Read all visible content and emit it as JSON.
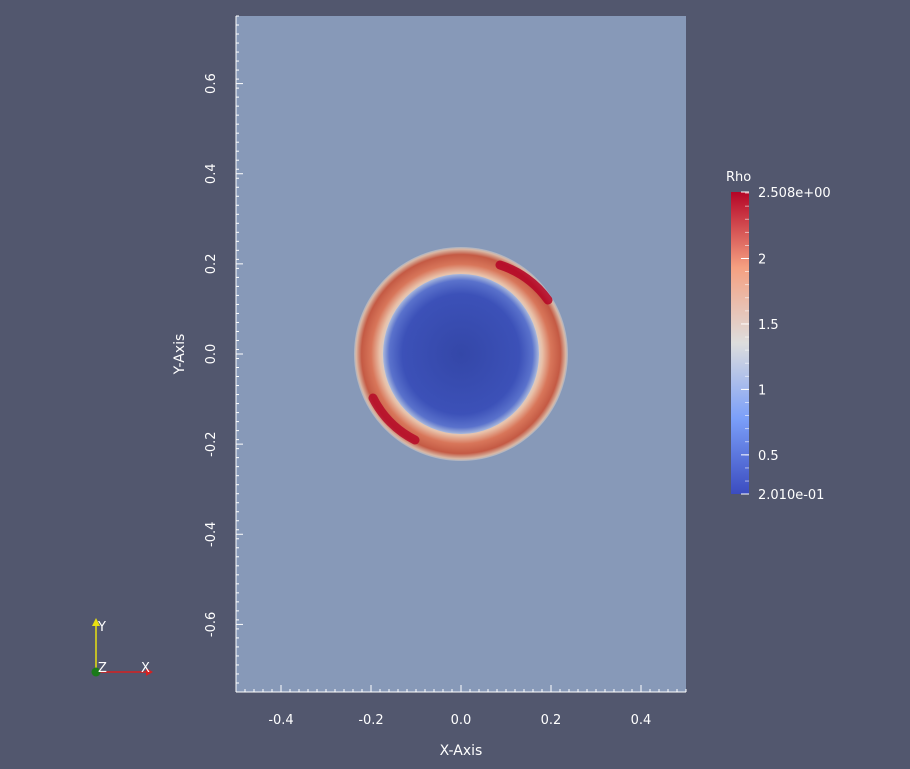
{
  "axes": {
    "x_label": "X-Axis",
    "y_label": "Y-Axis",
    "x_range": [
      -0.5,
      0.5
    ],
    "y_range": [
      -0.75,
      0.75
    ],
    "x_ticks": [
      "-0.4",
      "-0.2",
      "0.0",
      "0.2",
      "0.4"
    ],
    "x_tick_values": [
      -0.4,
      -0.2,
      0.0,
      0.2,
      0.4
    ],
    "y_ticks": [
      "0.6",
      "0.4",
      "0.2",
      "0.0",
      "-0.2",
      "-0.4",
      "-0.6"
    ],
    "y_tick_values": [
      0.6,
      0.4,
      0.2,
      0.0,
      -0.2,
      -0.4,
      -0.6
    ]
  },
  "colorbar": {
    "title": "Rho",
    "max_label": "2.508e+00",
    "min_label": "2.010e-01",
    "max_value": 2.508,
    "min_value": 0.201,
    "tick_labels": [
      "2",
      "1.5",
      "1",
      "0.5"
    ],
    "tick_values": [
      2.0,
      1.5,
      1.0,
      0.5
    ]
  },
  "orientation_axes": {
    "x_label": "X",
    "y_label": "Y",
    "z_label": "Z",
    "x_color": "#d62020",
    "y_color": "#e8e010",
    "z_color": "#1a7a1a"
  },
  "colors": {
    "background": "#52576e",
    "domain_fill": "#8799b8",
    "inner_low": "#3b4cc0",
    "ring_high": "#b40426"
  }
}
